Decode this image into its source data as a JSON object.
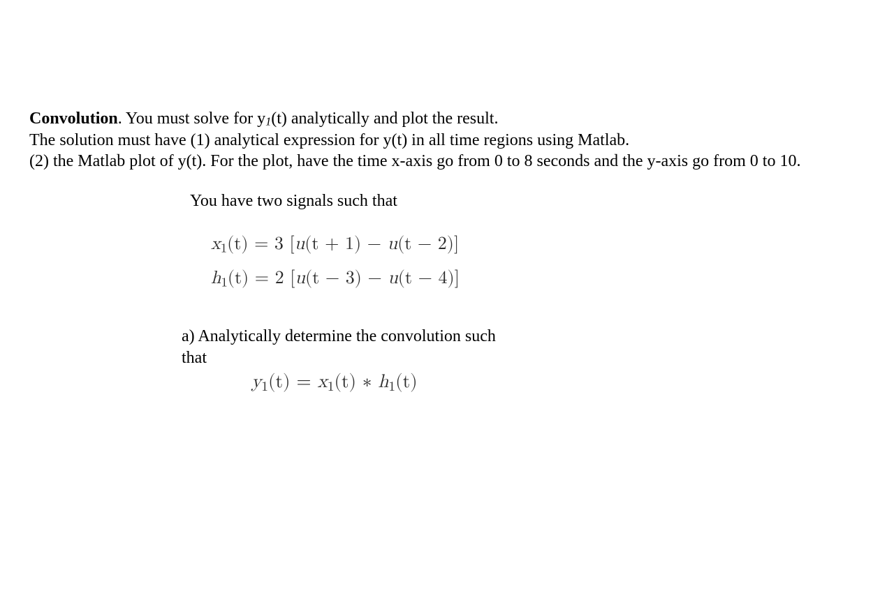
{
  "intro": {
    "title": "Convolution",
    "sentence1_pre": ".   You must solve for y",
    "sentence1_sub": "1",
    "sentence1_post": "(t) analytically and plot the result.",
    "line2": "The solution must have (1) analytical expression for y(t) in all time regions using Matlab.",
    "line3": "(2) the Matlab plot of y(t). For the plot, have the time x-axis go from 0 to 8 seconds and the y-axis go from 0 to 10."
  },
  "signals_intro": "You have two signals such that",
  "equations": {
    "x1": {
      "lhs_var": "x",
      "lhs_sub": "1",
      "lhs_arg": "(t) = 3 [",
      "u1": "u",
      "u1_arg": "(t + 1) − ",
      "u2": "u",
      "u2_arg": "(t − 2)]"
    },
    "h1": {
      "lhs_var": "h",
      "lhs_sub": "1",
      "lhs_arg": "(t) = 2 [",
      "u1": "u",
      "u1_arg": "(t − 3) − ",
      "u2": "u",
      "u2_arg": "(t − 4)]"
    }
  },
  "part_a": {
    "line1": "a) Analytically determine the convolution such",
    "line2": "that"
  },
  "conv_eq": {
    "y": "y",
    "y_sub": "1",
    "mid1": "(t) = ",
    "x": "x",
    "x_sub": "1",
    "mid2": "(t) ∗ ",
    "h": "h",
    "h_sub": "1",
    "tail": "(t)"
  }
}
